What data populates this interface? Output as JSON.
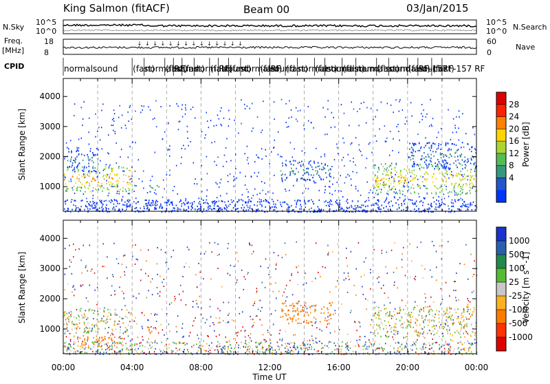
{
  "header": {
    "station": "King Salmon (fitACF)",
    "beam": "Beam 00",
    "date": "03/Jan/2015"
  },
  "strip_labels": {
    "nsky": "N.Sky",
    "nsearch": "N.Search",
    "freq_top": "Freq.",
    "freq_unit": "[MHz]",
    "nave": "Nave",
    "cpid": "CPID",
    "noise_ticks_left": [
      "10^5",
      "10^0"
    ],
    "noise_ticks_right": [
      "10^5",
      "10^0"
    ],
    "freq_ticks": [
      "18",
      "8"
    ],
    "nave_ticks": [
      "60",
      "0"
    ]
  },
  "cpid_segments": [
    {
      "start_h": 0.0,
      "label": "normalsound"
    },
    {
      "start_h": 4.0,
      "label": "(fast)"
    },
    {
      "start_h": 4.7,
      "label": "normalsound"
    },
    {
      "start_h": 5.9,
      "label": "(fast)"
    },
    {
      "start_h": 6.4,
      "label": "RF"
    },
    {
      "start_h": 6.9,
      "label": "(fast)"
    },
    {
      "start_h": 7.6,
      "label": "normalsound"
    },
    {
      "start_h": 8.5,
      "label": "(fast)"
    },
    {
      "start_h": 9.0,
      "label": "RF"
    },
    {
      "start_h": 9.6,
      "label": "(fast)"
    },
    {
      "start_h": 10.3,
      "label": "normalsound"
    },
    {
      "start_h": 11.4,
      "label": "(fast)"
    },
    {
      "start_h": 12.0,
      "label": "RF"
    },
    {
      "start_h": 12.9,
      "label": "(fast)"
    },
    {
      "start_h": 13.6,
      "label": "normalsound"
    },
    {
      "start_h": 14.6,
      "label": "(fast)"
    },
    {
      "start_h": 15.2,
      "label": "normalsound"
    },
    {
      "start_h": 16.2,
      "label": "(fast)"
    },
    {
      "start_h": 17.0,
      "label": "normalsound"
    },
    {
      "start_h": 18.2,
      "label": "(fast)"
    },
    {
      "start_h": 18.9,
      "label": "normalsound"
    },
    {
      "start_h": 20.0,
      "label": "(fast)"
    },
    {
      "start_h": 20.6,
      "label": "RF-157"
    },
    {
      "start_h": 21.4,
      "label": "(fast)"
    },
    {
      "start_h": 22.0,
      "label": "RF-157 RF"
    }
  ],
  "chart_data": [
    {
      "type": "heatmap",
      "name": "power",
      "ylabel": "Slant Range [km]",
      "xlabel": "Time UT",
      "x_range_hours": [
        0,
        24
      ],
      "ylim": [
        180,
        4600
      ],
      "yticks": [
        1000,
        2000,
        3000,
        4000
      ],
      "colorbar": {
        "label": "Power [dB]",
        "ticks": [
          4,
          8,
          12,
          16,
          20,
          24,
          28
        ],
        "colors": [
          "#0033ff",
          "#2255cc",
          "#33997a",
          "#55bb55",
          "#aad633",
          "#ffd400",
          "#ff8000",
          "#ff2200",
          "#dd0000"
        ]
      },
      "echo_regions": [
        {
          "t0": 0.0,
          "t1": 4.0,
          "r0": 850,
          "r1": 1700,
          "level": 22
        },
        {
          "t0": 0.2,
          "t1": 2.0,
          "r0": 1500,
          "r1": 2300,
          "level": 8
        },
        {
          "t0": 5.0,
          "t1": 5.6,
          "r0": 850,
          "r1": 1100,
          "level": 14
        },
        {
          "t0": 12.6,
          "t1": 15.6,
          "r0": 1200,
          "r1": 1900,
          "level": 10
        },
        {
          "t0": 18.0,
          "t1": 24.0,
          "r0": 750,
          "r1": 1800,
          "level": 20
        },
        {
          "t0": 20.0,
          "t1": 24.0,
          "r0": 1600,
          "r1": 2500,
          "level": 8
        },
        {
          "t0": 0.0,
          "t1": 24.0,
          "r0": 180,
          "r1": 600,
          "level": 5
        }
      ]
    },
    {
      "type": "heatmap",
      "name": "velocity",
      "ylabel": "Slant Range [km]",
      "xlabel": "Time UT",
      "x_range_hours": [
        0,
        24
      ],
      "ylim": [
        180,
        4600
      ],
      "yticks": [
        1000,
        2000,
        3000,
        4000
      ],
      "colorbar": {
        "label": "Velocity [m s^-1]",
        "ticks": [
          1000,
          500,
          100,
          25,
          -25,
          -100,
          -500,
          -1000
        ],
        "colors": [
          "#1a33cc",
          "#2a5fb0",
          "#228a4a",
          "#55bb33",
          "#c8c8c8",
          "#ffb020",
          "#ff7a00",
          "#ff3300",
          "#e00000"
        ]
      },
      "echo_regions": [
        {
          "t0": 0.0,
          "t1": 4.0,
          "r0": 900,
          "r1": 1700,
          "velocity": 0
        },
        {
          "t0": 0.5,
          "t1": 3.5,
          "r0": 400,
          "r1": 800,
          "velocity": -200
        },
        {
          "t0": 4.8,
          "t1": 5.5,
          "r0": 850,
          "r1": 1100,
          "velocity": -400
        },
        {
          "t0": 12.6,
          "t1": 15.6,
          "r0": 1200,
          "r1": 1900,
          "velocity": -200
        },
        {
          "t0": 18.0,
          "t1": 24.0,
          "r0": 750,
          "r1": 1800,
          "velocity": 0
        },
        {
          "t0": 0.0,
          "t1": 24.0,
          "r0": 180,
          "r1": 600,
          "velocity": 50
        }
      ]
    }
  ],
  "time_axis": {
    "label": "Time UT",
    "ticks": [
      "00:00",
      "04:00",
      "08:00",
      "12:00",
      "16:00",
      "20:00",
      "00:00"
    ]
  }
}
